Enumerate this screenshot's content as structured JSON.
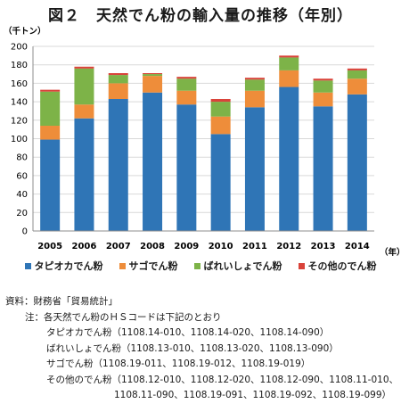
{
  "title": "図２　天然でん粉の輸入量の推移（年別）",
  "colors": {
    "tapioca": "#2f75b6",
    "sago": "#ee8d3a",
    "potato": "#7db348",
    "other": "#d9433a"
  },
  "chart_data": {
    "type": "bar",
    "stacked": true,
    "title": "図２　天然でん粉の輸入量の推移（年別）",
    "ylabel": "（千トン）",
    "xlabel": "（年）",
    "ylim": [
      0,
      200
    ],
    "yticks": [
      0,
      20,
      40,
      60,
      80,
      100,
      120,
      140,
      160,
      180,
      200
    ],
    "categories": [
      "2005",
      "2006",
      "2007",
      "2008",
      "2009",
      "2010",
      "2011",
      "2012",
      "2013",
      "2014"
    ],
    "series": [
      {
        "name": "タピオカでん粉",
        "color": "#2f75b6",
        "values": [
          99,
          122,
          143,
          150,
          137,
          105,
          134,
          156,
          135,
          148
        ]
      },
      {
        "name": "サゴでん粉",
        "color": "#ee8d3a",
        "values": [
          15,
          15,
          17,
          18,
          15,
          19,
          18,
          18,
          15,
          17
        ]
      },
      {
        "name": "ばれいしょでん粉",
        "color": "#7db348",
        "values": [
          37,
          39,
          9,
          2,
          13,
          16,
          12,
          14,
          13,
          9
        ]
      },
      {
        "name": "その他のでん粉",
        "color": "#d9433a",
        "values": [
          2,
          2,
          2,
          1,
          2,
          3,
          2,
          2,
          2,
          2
        ]
      }
    ],
    "grid": true,
    "legend_position": "bottom"
  },
  "notes": {
    "source": "資料：財務省「貿易統計」",
    "header": "注：各天然でん粉のＨＳコードは下記のとおり",
    "items": [
      "タピオカでん粉（1108.14-010、1108.14-020、1108.14-090）",
      "ばれいしょでん粉（1108.13-010、1108.13-020、1108.13-090）",
      "サゴでん粉（1108.19-011、1108.19-012、1108.19-019）",
      "その他のでん粉（1108.12-010、1108.12-020、1108.12-090、1108.11-010、"
    ],
    "continuation": "1108.11-090、1108.19-091、1108.19-092、1108.19-099）"
  }
}
